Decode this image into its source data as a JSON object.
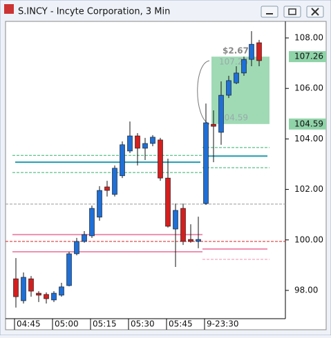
{
  "window_title": "S.INCY - Incyte Corporation, 3 Min",
  "chart_data": {
    "type": "candlestick",
    "categories": [
      "04:45",
      null,
      null,
      null,
      null,
      "05:00",
      null,
      null,
      null,
      null,
      "05:15",
      null,
      null,
      null,
      null,
      "05:30",
      null,
      null,
      null,
      null,
      "05:45",
      null,
      null,
      null,
      null,
      "9-23:30",
      null,
      null,
      null,
      null,
      null,
      null,
      null
    ],
    "open": [
      98.46,
      97.59,
      98.46,
      97.89,
      97.84,
      97.62,
      97.81,
      98.19,
      99.45,
      99.94,
      100.16,
      100.9,
      102.1,
      101.8,
      102.54,
      103.52,
      104.12,
      103.63,
      103.82,
      103.96,
      102.45,
      100.43,
      101.25,
      100.02,
      99.94,
      101.44,
      104.58,
      104.26,
      105.73,
      106.22,
      106.61,
      107.15,
      107.81
    ],
    "high": [
      99.28,
      98.71,
      98.57,
      97.97,
      97.92,
      97.97,
      98.3,
      99.53,
      100.08,
      100.35,
      101.36,
      102.13,
      102.34,
      102.95,
      103.9,
      104.69,
      104.23,
      104.04,
      104.15,
      104.04,
      103.22,
      101.44,
      101.44,
      100.62,
      100.92,
      105.4,
      105.13,
      106.28,
      106.5,
      106.88,
      107.26,
      108.27,
      107.92
    ],
    "low": [
      97.32,
      97.48,
      97.75,
      97.54,
      97.48,
      97.54,
      97.75,
      98.16,
      99.39,
      99.89,
      100.08,
      100.76,
      101.72,
      101.72,
      102.45,
      103.44,
      102.95,
      103.16,
      103.71,
      102.34,
      100.49,
      98.93,
      99.8,
      99.89,
      99.67,
      101.39,
      103.08,
      103.77,
      105.62,
      106.17,
      106.5,
      106.88,
      106.88
    ],
    "close": [
      97.75,
      98.52,
      97.97,
      97.81,
      97.67,
      97.89,
      98.14,
      99.45,
      99.94,
      100.21,
      101.25,
      101.96,
      101.96,
      102.84,
      103.77,
      104.12,
      103.63,
      103.82,
      104.07,
      102.45,
      100.54,
      101.17,
      99.94,
      99.94,
      100.02,
      104.64,
      104.5,
      105.73,
      106.31,
      106.61,
      107.15,
      107.75,
      107.1
    ],
    "up_color": "#1f6fd6",
    "down_color": "#d41f1f",
    "ylim": [
      96.934,
      108.656
    ],
    "yticks": [
      {
        "value": 98,
        "label": "98.00"
      },
      {
        "value": 100,
        "label": "100.00"
      },
      {
        "value": 102,
        "label": "102.00"
      },
      {
        "value": 104,
        "label": "104.00"
      },
      {
        "value": 106,
        "label": "106.00"
      },
      {
        "value": 108,
        "label": "108.00"
      }
    ],
    "levels": [
      {
        "value": 103.35,
        "color": "#2fb36a",
        "dash": true
      },
      {
        "value": 103.08,
        "color": "#1e9bb0",
        "dash": false
      },
      {
        "value": 102.67,
        "color": "#2fb36a",
        "dash": true
      },
      {
        "value": 103.66,
        "color": "#2fb36a",
        "dash": true
      },
      {
        "value": 102.86,
        "color": "#2fb36a",
        "dash": true
      },
      {
        "value": 103.32,
        "color": "#1e9bb0",
        "dash": false
      },
      {
        "value": 101.42,
        "color": "#999999",
        "dash": true
      },
      {
        "value": 100.21,
        "color": "#ef8fb0",
        "dash": false
      },
      {
        "value": 99.94,
        "color": "#d42020",
        "dash": true
      },
      {
        "value": 99.53,
        "color": "#ef8fb0",
        "dash": false
      },
      {
        "value": 99.64,
        "color": "#ef8fb0",
        "dash": false
      },
      {
        "value": 99.23,
        "color": "#ef8fb0",
        "dash": true
      }
    ],
    "measure": {
      "label": "$2.67",
      "top": 107.26,
      "bottom": 104.59,
      "color": "#8fd3a8"
    }
  }
}
